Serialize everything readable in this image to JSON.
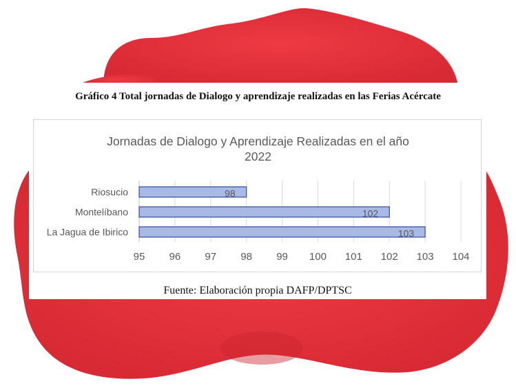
{
  "figure": {
    "caption": "Gráfico 4 Total jornadas de Dialogo y aprendizaje realizadas en las Ferias Acércate",
    "source": "Fuente: Elaboración propia DAFP/DPTSC"
  },
  "chart_data": {
    "type": "bar",
    "orientation": "horizontal",
    "title_line1": "Jornadas  de Dialogo y Aprendizaje  Realizadas  en el año",
    "title_line2": "2022",
    "categories": [
      "Riosucio",
      "Montelíbano",
      "La Jagua de Ibirico"
    ],
    "values": [
      98,
      102,
      103
    ],
    "xlim": [
      95,
      104
    ],
    "x_ticks": [
      "95",
      "96",
      "97",
      "98",
      "99",
      "100",
      "101",
      "102",
      "103",
      "104"
    ],
    "grid": true,
    "data_labels": true,
    "colors": {
      "bar_fill": "#a9b9e6",
      "bar_stroke": "#2f4ba3",
      "grid": "#d9d9d9",
      "text": "#595959"
    }
  },
  "background": {
    "blob_color": "#e8313b"
  }
}
